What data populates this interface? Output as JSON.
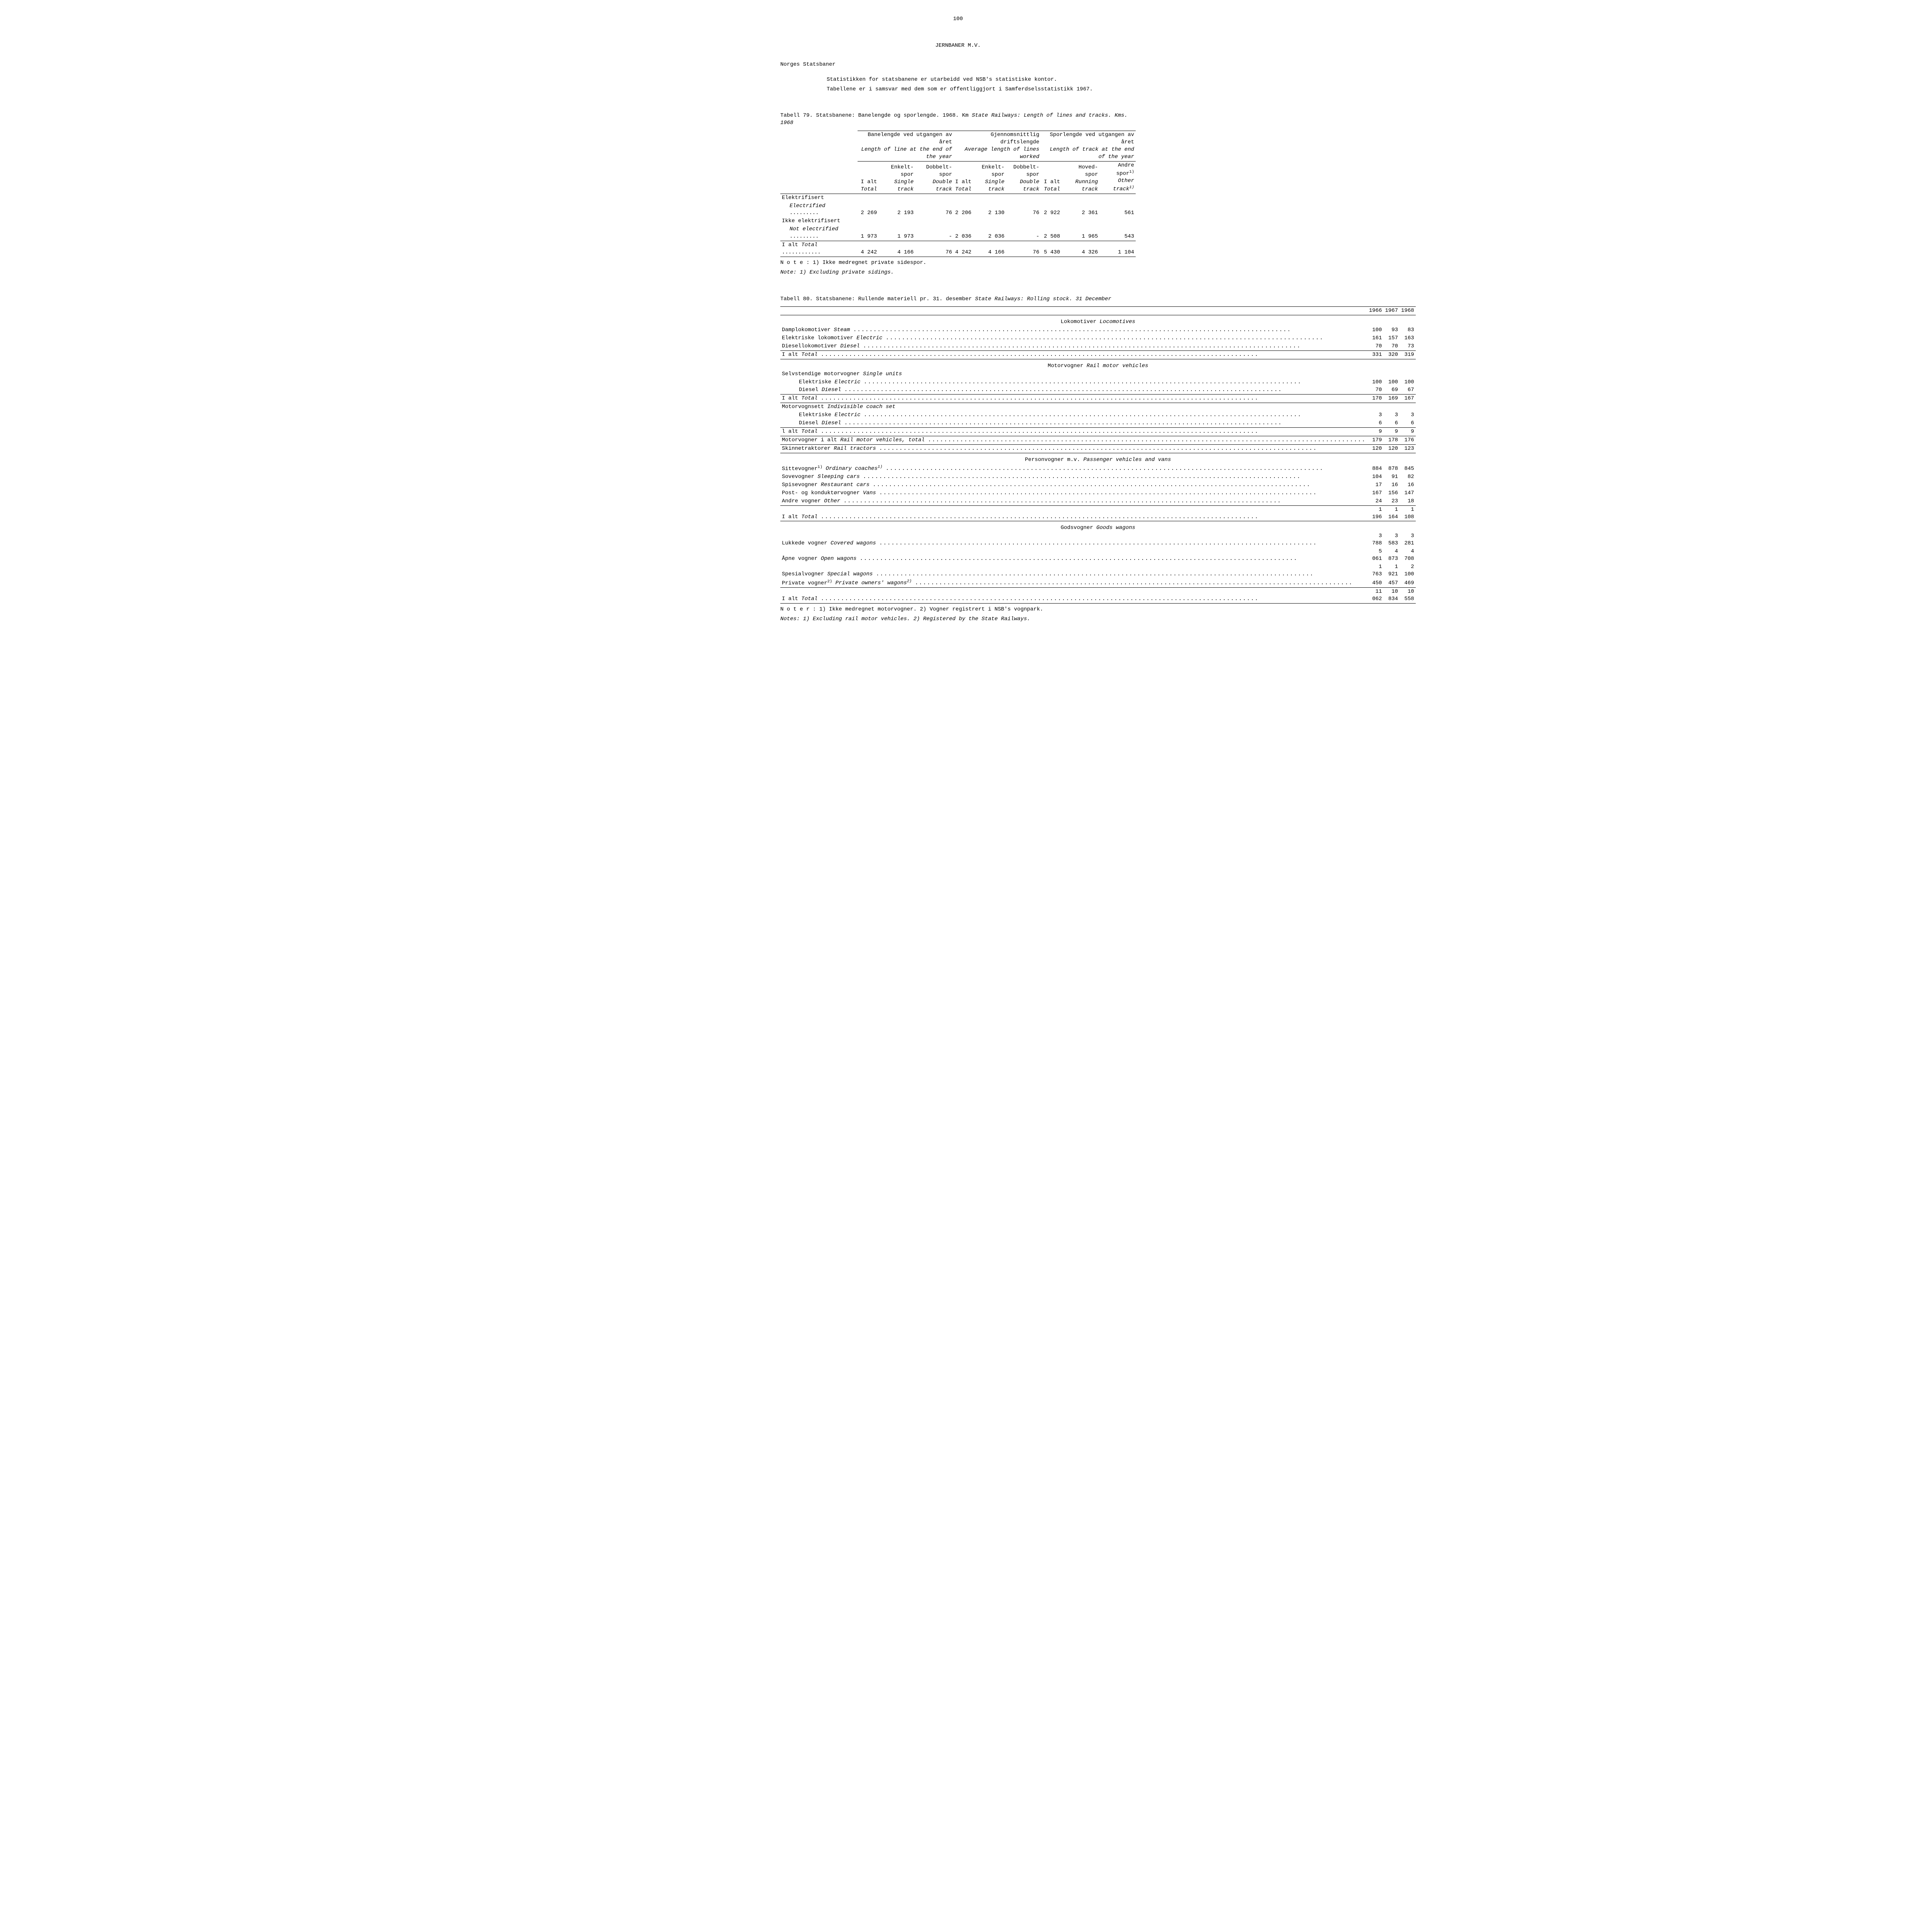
{
  "page_number": "100",
  "doc_title": "JERNBANER M.V.",
  "subtitle": "Norges Statsbaner",
  "intro": [
    "Statistikken for statsbanene er utarbeidd ved NSB's statistiske kontor.",
    "Tabellene er i samsvar med dem som er offentliggjort i Samferdselsstatistikk 1967."
  ],
  "table79": {
    "title_prefix": "Tabell 79.  Statsbanene:  Banelengde og sporlengde.  1968.  Km  ",
    "title_italic": "State Railways:  Length of lines and tracks.   Kms.   1968",
    "groups": [
      {
        "no": "Banelengde ved utgangen av året",
        "en": "Length of line at the end of the year"
      },
      {
        "no": "Gjennomsnittlig driftslengde",
        "en": "Average length of lines worked"
      },
      {
        "no": "Sporlengde ved utgangen av året",
        "en": "Length of track at the end of the year"
      }
    ],
    "sub1": {
      "c1": "I alt",
      "c1i": "Total",
      "c2a": "Enkelt-",
      "c2b": "spor",
      "c2i": "Single track",
      "c3a": "Dobbelt-",
      "c3b": "spor",
      "c3i": "Double track"
    },
    "sub3": {
      "c1": "I alt",
      "c1i": "Total",
      "c2a": "Hoved-",
      "c2b": "spor",
      "c2i": "Running track",
      "c3a": "Andre",
      "c3b": "spor",
      "c3sup": "1)",
      "c3i": "Other track",
      "c3isup": "1)"
    },
    "rows": [
      {
        "label_no": "Elektrifisert",
        "label_en": "Electrified",
        "v": [
          "2 269",
          "2 193",
          "76",
          "2 206",
          "2 130",
          "76",
          "2 922",
          "2 361",
          "561"
        ]
      },
      {
        "label_no": "Ikke elektrifisert",
        "label_en": "Not electrified",
        "v": [
          "1 973",
          "1 973",
          "-",
          "2 036",
          "2 036",
          "-",
          "2 508",
          "1 965",
          "543"
        ],
        "sumline": true
      },
      {
        "label_no": "I alt",
        "label_en": "Total",
        "v": [
          "4 242",
          "4 166",
          "76",
          "4 242",
          "4 166",
          "76",
          "5 430",
          "4 326",
          "1 104"
        ],
        "total": true
      }
    ],
    "note_no": "N o t e :  1) Ikke medregnet private sidespor.",
    "note_en": "Note:  1) Excluding private sidings."
  },
  "table80": {
    "title_prefix": "Tabell 80.  Statsbanene:  Rullende materiell pr. 31. desember  ",
    "title_italic": "State Railways:  Rolling stock. 31 December",
    "years": [
      "1966",
      "1967",
      "1968"
    ],
    "sections": [
      {
        "head_no": "Lokomotiver",
        "head_en": "Locomotives",
        "rows": [
          {
            "label": "Damplokomotiver",
            "en": "Steam",
            "v": [
              "100",
              "93",
              "83"
            ]
          },
          {
            "label": "Elektriske lokomotiver",
            "en": "Electric",
            "v": [
              "161",
              "157",
              "163"
            ]
          },
          {
            "label": "Diesellokomotiver",
            "en": "Diesel",
            "v": [
              "70",
              "70",
              "73"
            ],
            "rule": true
          }
        ],
        "total": {
          "label": "I alt",
          "en": "Total",
          "v": [
            "331",
            "320",
            "319"
          ]
        }
      },
      {
        "head_no": "Motorvogner",
        "head_en": "Rail motor vehicles",
        "subhead": {
          "label": "Selvstendige motorvogner",
          "en": "Single units"
        },
        "rows": [
          {
            "label": "Elektriske",
            "en": "Electric",
            "indent": 2,
            "v": [
              "100",
              "100",
              "100"
            ]
          },
          {
            "label": "Diesel",
            "en": "Diesel",
            "indent": 2,
            "v": [
              "70",
              "69",
              "67"
            ],
            "rule": true
          }
        ],
        "total": {
          "label": "I alt",
          "en": "Total",
          "v": [
            "170",
            "169",
            "167"
          ]
        }
      },
      {
        "subhead": {
          "label": "Motorvognsett",
          "en": "Indivisible coach set"
        },
        "rows": [
          {
            "label": "Elektriske",
            "en": "Electric",
            "indent": 2,
            "v": [
              "3",
              "3",
              "3"
            ]
          },
          {
            "label": "Diesel",
            "en": "Diesel",
            "indent": 2,
            "v": [
              "6",
              "6",
              "6"
            ],
            "rule": true
          }
        ],
        "total": {
          "label": "l alt",
          "en": "Total",
          "v": [
            "9",
            "9",
            "9"
          ]
        },
        "extra_totals": [
          {
            "label": "Motorvogner i alt",
            "en": "Rail motor vehicles, total",
            "v": [
              "179",
              "178",
              "176"
            ],
            "rule": true
          },
          {
            "label": "Skinnetraktorer",
            "en": "Rail tractors",
            "v": [
              "120",
              "120",
              "123"
            ],
            "rule": true
          }
        ]
      },
      {
        "head_no": "Personvogner m.v.",
        "head_en": "Passenger vehicles and vans",
        "rows": [
          {
            "label": "Sittevogner",
            "sup": "1)",
            "en": "Ordinary coaches",
            "ensup": "1)",
            "v": [
              "884",
              "878",
              "845"
            ]
          },
          {
            "label": "Sovevogner",
            "en": "Sleeping cars",
            "v": [
              "104",
              "91",
              "82"
            ]
          },
          {
            "label": "Spisevogner",
            "en": "Restaurant cars",
            "v": [
              "17",
              "16",
              "16"
            ]
          },
          {
            "label": "Post- og konduktørvogner",
            "en": "Vans",
            "v": [
              "167",
              "156",
              "147"
            ]
          },
          {
            "label": "Andre vogner",
            "en": "Other",
            "v": [
              "24",
              "23",
              "18"
            ],
            "rule": true
          }
        ],
        "total": {
          "label": "I alt",
          "en": "Total",
          "v": [
            "1 196",
            "1 164",
            "1 108"
          ]
        }
      },
      {
        "head_no": "Godsvogner",
        "head_en": "Goods wagons",
        "rows": [
          {
            "label": "Lukkede vogner",
            "en": "Covered wagons",
            "v": [
              "3 788",
              "3 583",
              "3 281"
            ]
          },
          {
            "label": "Åpne vogner",
            "en": "Open wagons",
            "v": [
              "5 061",
              "4 873",
              "4 708"
            ]
          },
          {
            "label": "Spesialvogner",
            "en": "Special wagons",
            "v": [
              "1 763",
              "1 921",
              "2 100"
            ]
          },
          {
            "label": "Private vogner",
            "sup": "2)",
            "en": "Private owners' wagons",
            "ensup": "2)",
            "v": [
              "450",
              "457",
              "469"
            ],
            "rule": true
          }
        ],
        "total": {
          "label": "I alt",
          "en": "Total",
          "v": [
            "11 062",
            "10 834",
            "10 558"
          ],
          "final": true
        }
      }
    ],
    "note_no": "N o t e r :  1) Ikke medregnet motorvogner.  2) Vogner registrert i NSB's vognpark.",
    "note_en": "Notes:  1) Excluding rail motor vehicles.  2) Registered by the State Railways."
  }
}
